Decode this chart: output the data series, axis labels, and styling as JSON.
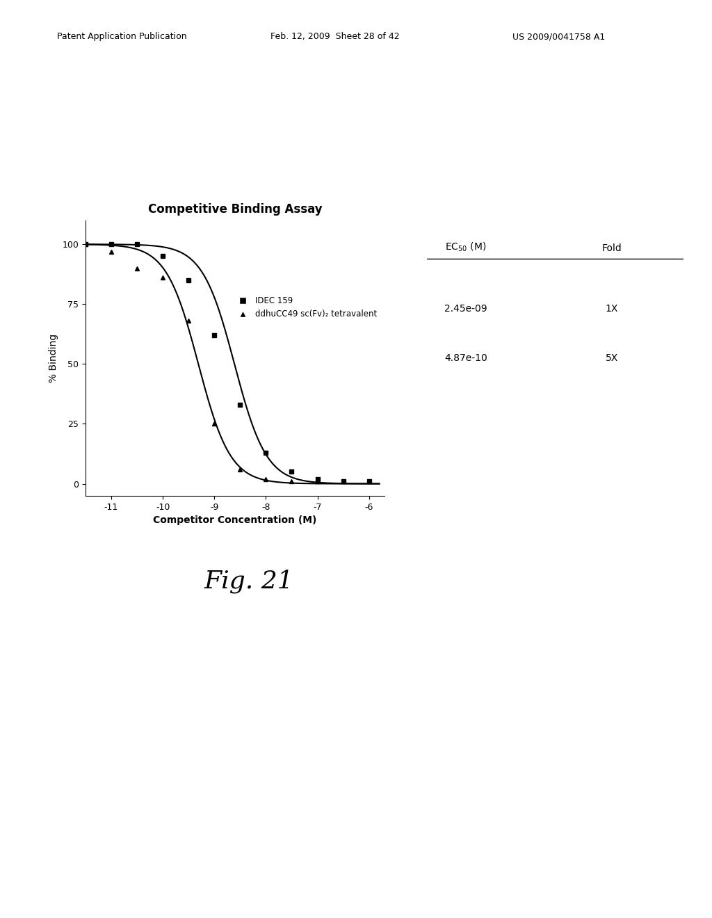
{
  "title": "Competitive Binding Assay",
  "xlabel": "Competitor Concentration (M)",
  "ylabel": "% Binding",
  "xlim": [
    -11.5,
    -5.7
  ],
  "ylim": [
    -5,
    110
  ],
  "xticks": [
    -11,
    -10,
    -9,
    -8,
    -7,
    -6
  ],
  "yticks": [
    0,
    25,
    50,
    75,
    100
  ],
  "series1_label": "IDEC 159",
  "series1_ec50_log": -8.61,
  "series1_hill": 1.4,
  "series2_label": "ddhuCC49 sc(Fv)₂ tetravalent",
  "series2_ec50_log": -9.31,
  "series2_hill": 1.4,
  "series1_points_x": [
    -11.5,
    -11.0,
    -10.5,
    -10.0,
    -9.5,
    -9.0,
    -8.5,
    -8.0,
    -7.5,
    -7.0,
    -6.5,
    -6.0
  ],
  "series1_points_y": [
    100,
    100,
    100,
    95,
    85,
    62,
    33,
    13,
    5,
    2,
    1,
    1
  ],
  "series2_points_x": [
    -11.5,
    -11.0,
    -10.5,
    -10.0,
    -9.5,
    -9.0,
    -8.5,
    -8.0,
    -7.5,
    -7.0
  ],
  "series2_points_y": [
    100,
    97,
    90,
    86,
    68,
    25,
    6,
    2,
    1,
    1
  ],
  "color": "#000000",
  "header_left": "Patent Application Publication",
  "header_center": "Feb. 12, 2009  Sheet 28 of 42",
  "header_right": "US 2009/0041758 A1",
  "fig_label": "Fig. 21",
  "table_header_ec50": "EC",
  "table_header_fold": "Fold",
  "ec50_1": "2.45e-09",
  "fold_1": "1X",
  "ec50_2": "4.87e-10",
  "fold_2": "5X"
}
